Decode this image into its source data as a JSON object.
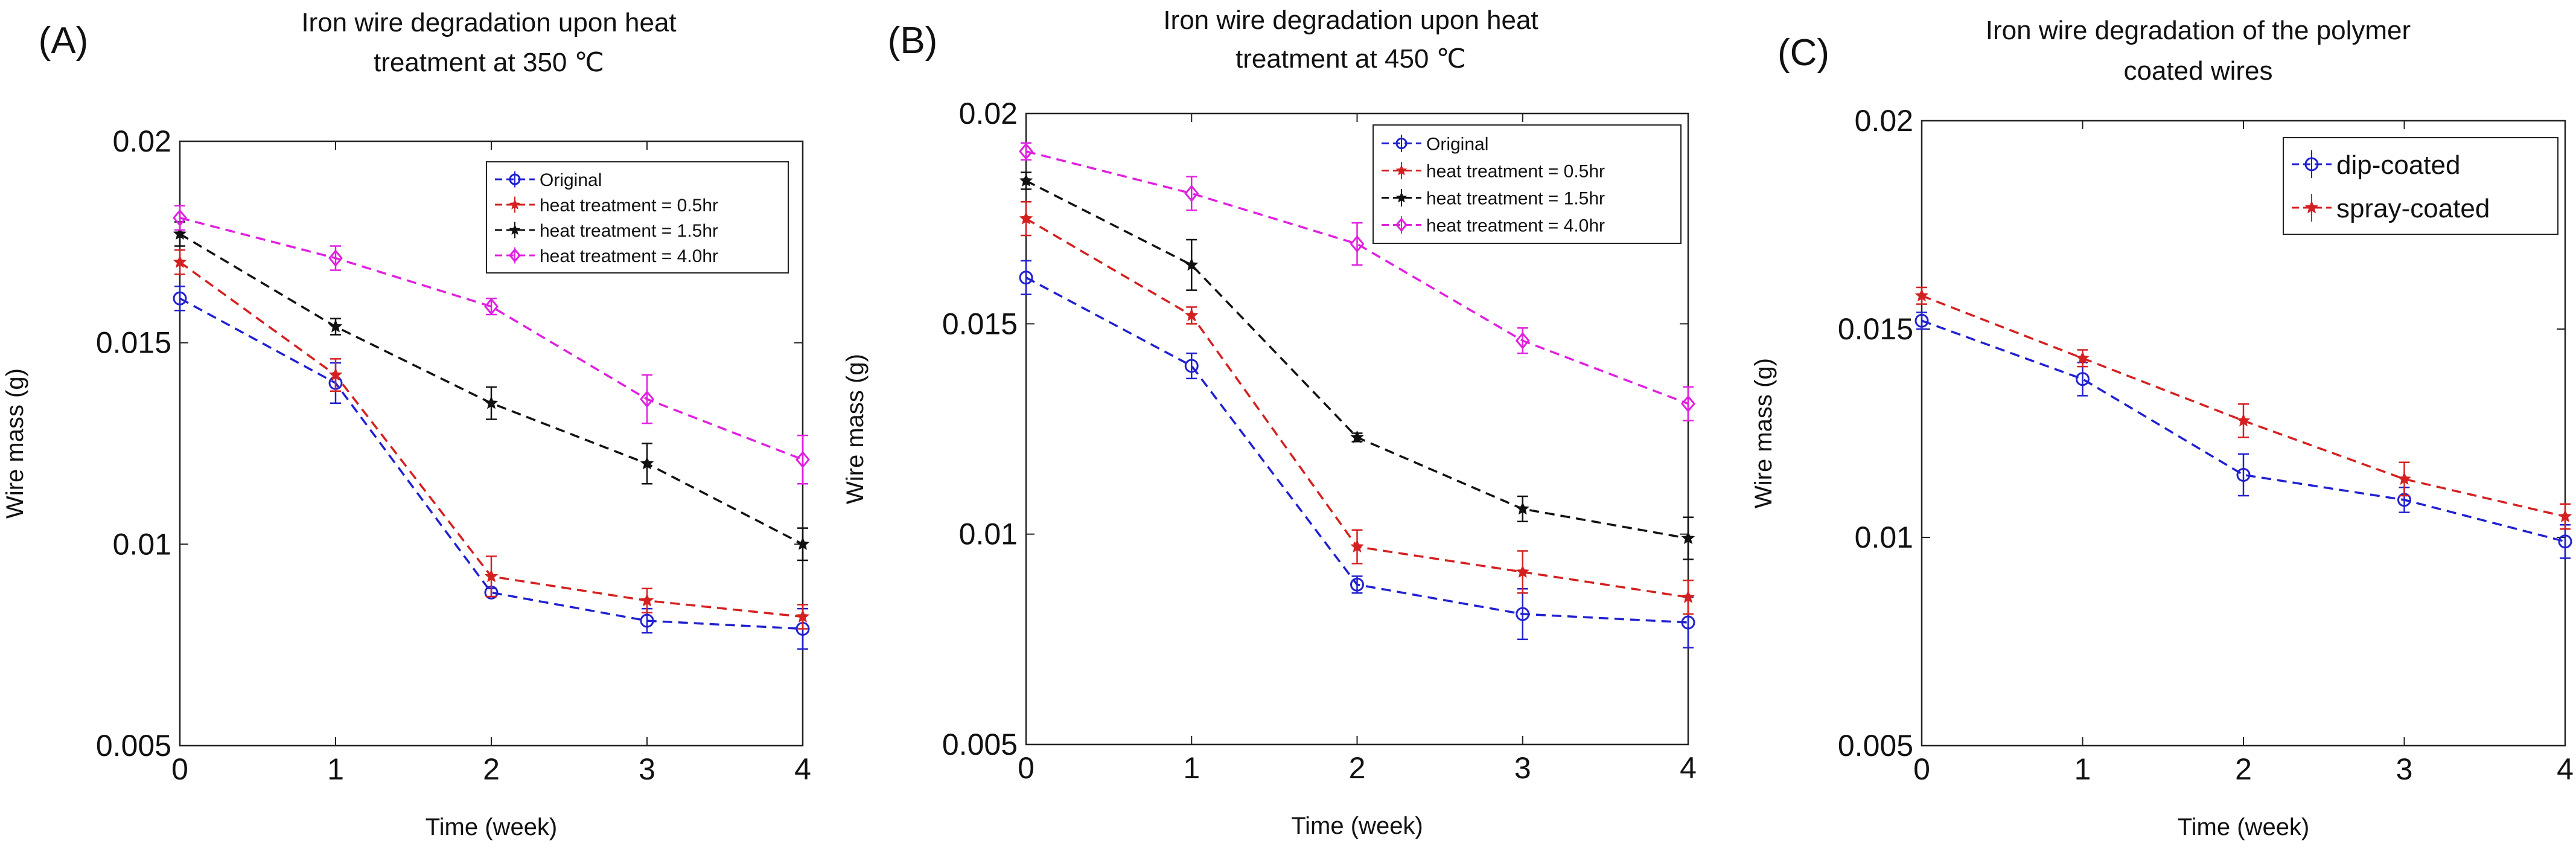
{
  "chart_data": [
    {
      "panel_label": "(A)",
      "type": "line",
      "title": [
        "Iron wire degradation upon heat",
        "treatment at 350 ℃"
      ],
      "xlabel": "Time (week)",
      "ylabel": "Wire mass (g)",
      "x": [
        0,
        1,
        2,
        3,
        4
      ],
      "xlim": [
        0,
        4
      ],
      "ylim": [
        0.005,
        0.02
      ],
      "yticks": [
        "0.005",
        "0.01",
        "0.015",
        "0.02"
      ],
      "xticks": [
        "0",
        "1",
        "2",
        "3",
        "4"
      ],
      "legend_position": "top-right",
      "series": [
        {
          "name": "Original",
          "color": "#2020d0",
          "marker": "circle",
          "values": [
            0.0161,
            0.014,
            0.0088,
            0.0081,
            0.0079
          ],
          "errors": [
            0.0003,
            0.0005,
            0.0001,
            0.0003,
            0.0005
          ]
        },
        {
          "name": "heat treatment = 0.5hr",
          "color": "#d42020",
          "marker": "star",
          "values": [
            0.017,
            0.0142,
            0.0092,
            0.0086,
            0.0082
          ],
          "errors": [
            0.0003,
            0.0004,
            0.0005,
            0.0003,
            0.0003
          ]
        },
        {
          "name": "heat treatment = 1.5hr",
          "color": "#111111",
          "marker": "star",
          "values": [
            0.0177,
            0.0154,
            0.0135,
            0.012,
            0.01
          ],
          "errors": [
            0.0003,
            0.0002,
            0.0004,
            0.0005,
            0.0004
          ]
        },
        {
          "name": "heat treatment = 4.0hr",
          "color": "#e020e0",
          "marker": "diamond",
          "values": [
            0.0181,
            0.0171,
            0.0159,
            0.0136,
            0.0121
          ],
          "errors": [
            0.0003,
            0.0003,
            0.0002,
            0.0006,
            0.0006
          ]
        }
      ]
    },
    {
      "panel_label": "(B)",
      "type": "line",
      "title": [
        "Iron wire degradation upon heat",
        "treatment at 450 ℃"
      ],
      "xlabel": "Time (week)",
      "ylabel": "Wire mass (g)",
      "x": [
        0,
        1,
        2,
        3,
        4
      ],
      "xlim": [
        0,
        4
      ],
      "ylim": [
        0.005,
        0.02
      ],
      "yticks": [
        "0.005",
        "0.01",
        "0.015",
        "0.02"
      ],
      "xticks": [
        "0",
        "1",
        "2",
        "3",
        "4"
      ],
      "legend_position": "top-right",
      "series": [
        {
          "name": "Original",
          "color": "#2020d0",
          "marker": "circle",
          "values": [
            0.0161,
            0.014,
            0.0088,
            0.0081,
            0.0079
          ],
          "errors": [
            0.0004,
            0.0003,
            0.0002,
            0.0006,
            0.0006
          ]
        },
        {
          "name": "heat treatment = 0.5hr",
          "color": "#d42020",
          "marker": "star",
          "values": [
            0.0175,
            0.0152,
            0.0097,
            0.0091,
            0.0085
          ],
          "errors": [
            0.0004,
            0.0002,
            0.0004,
            0.0005,
            0.0004
          ]
        },
        {
          "name": "heat treatment = 1.5hr",
          "color": "#111111",
          "marker": "star",
          "values": [
            0.0184,
            0.0164,
            0.0123,
            0.0106,
            0.0099
          ],
          "errors": [
            0.0002,
            0.0006,
            0.0001,
            0.0003,
            0.0005
          ]
        },
        {
          "name": "heat treatment = 4.0hr",
          "color": "#e020e0",
          "marker": "diamond",
          "values": [
            0.0191,
            0.0181,
            0.0169,
            0.0146,
            0.0131
          ],
          "errors": [
            0.0002,
            0.0004,
            0.0005,
            0.0003,
            0.0004
          ]
        }
      ]
    },
    {
      "panel_label": "(C)",
      "type": "line",
      "title": [
        "Iron wire degradation of the polymer",
        "coated wires"
      ],
      "xlabel": "Time (week)",
      "ylabel": "Wire mass (g)",
      "x": [
        0,
        1,
        2,
        3,
        4
      ],
      "xlim": [
        0,
        4
      ],
      "ylim": [
        0.005,
        0.02
      ],
      "yticks": [
        "0.005",
        "0.01",
        "0.015",
        "0.02"
      ],
      "xticks": [
        "0",
        "1",
        "2",
        "3",
        "4"
      ],
      "legend_position": "top-right",
      "series": [
        {
          "name": "dip-coated",
          "color": "#2020d0",
          "marker": "circle",
          "values": [
            0.0152,
            0.0138,
            0.0115,
            0.0109,
            0.0099
          ],
          "errors": [
            0.0002,
            0.0004,
            0.0005,
            0.0003,
            0.0004
          ]
        },
        {
          "name": "spray-coated",
          "color": "#d42020",
          "marker": "star",
          "values": [
            0.0158,
            0.0143,
            0.0128,
            0.0114,
            0.0105
          ],
          "errors": [
            0.0002,
            0.0002,
            0.0004,
            0.0004,
            0.0003
          ]
        }
      ]
    }
  ]
}
